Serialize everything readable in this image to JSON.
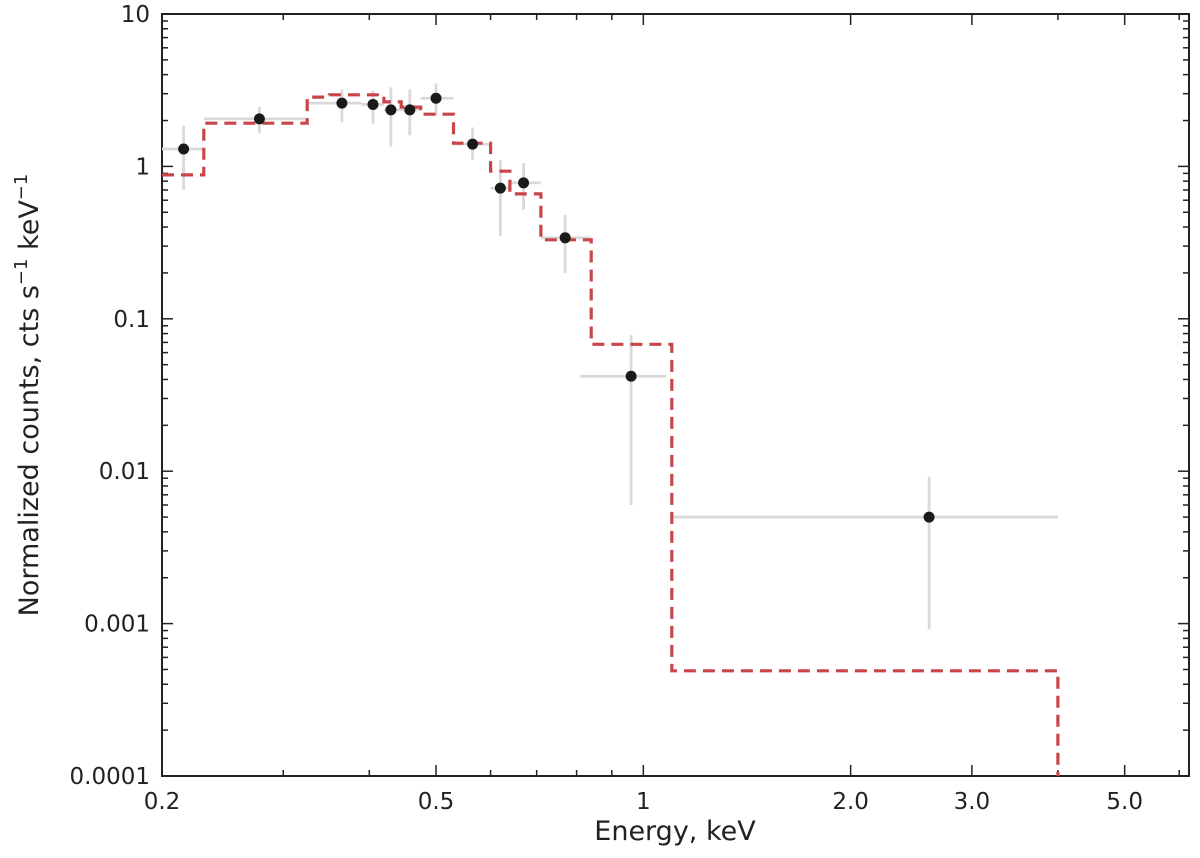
{
  "chart_data": {
    "type": "scatter",
    "title": "",
    "xlabel": "Energy, keV",
    "ylabel_parts": [
      "Normalized counts, cts s",
      "−1",
      " keV",
      "−1"
    ],
    "x_scale": "log",
    "y_scale": "log",
    "xlim": [
      0.2,
      6.2
    ],
    "ylim": [
      0.0001,
      10
    ],
    "x_ticks": [
      {
        "value": 0.2,
        "label": "0.2"
      },
      {
        "value": 0.5,
        "label": "0.5"
      },
      {
        "value": 1,
        "label": "1"
      },
      {
        "value": 2,
        "label": "2.0"
      },
      {
        "value": 3,
        "label": "3.0"
      },
      {
        "value": 5,
        "label": "5.0"
      }
    ],
    "y_ticks": [
      {
        "value": 10,
        "label": "10"
      },
      {
        "value": 1,
        "label": "1"
      },
      {
        "value": 0.1,
        "label": "0.1"
      },
      {
        "value": 0.01,
        "label": "0.01"
      },
      {
        "value": 0.001,
        "label": "0.001"
      },
      {
        "value": 0.0001,
        "label": "0.0001"
      }
    ],
    "grid": false,
    "data_points": [
      {
        "x": 0.215,
        "y": 1.3,
        "xerr": [
          0.2,
          0.23
        ],
        "yerr": [
          0.7,
          1.85
        ]
      },
      {
        "x": 0.277,
        "y": 2.05,
        "xerr": [
          0.23,
          0.325
        ],
        "yerr": [
          1.65,
          2.45
        ]
      },
      {
        "x": 0.365,
        "y": 2.6,
        "xerr": [
          0.325,
          0.39
        ],
        "yerr": [
          1.95,
          3.2
        ]
      },
      {
        "x": 0.405,
        "y": 2.55,
        "xerr": [
          0.39,
          0.42
        ],
        "yerr": [
          1.9,
          3.15
        ]
      },
      {
        "x": 0.43,
        "y": 2.35,
        "xerr": [
          0.42,
          0.445
        ],
        "yerr": [
          1.35,
          3.3
        ]
      },
      {
        "x": 0.458,
        "y": 2.35,
        "xerr": [
          0.445,
          0.475
        ],
        "yerr": [
          1.6,
          3.2
        ]
      },
      {
        "x": 0.5,
        "y": 2.8,
        "xerr": [
          0.475,
          0.53
        ],
        "yerr": [
          2.15,
          3.5
        ]
      },
      {
        "x": 0.565,
        "y": 1.4,
        "xerr": [
          0.53,
          0.6
        ],
        "yerr": [
          1.1,
          1.8
        ]
      },
      {
        "x": 0.62,
        "y": 0.72,
        "xerr": [
          0.6,
          0.64
        ],
        "yerr": [
          0.35,
          1.1
        ]
      },
      {
        "x": 0.67,
        "y": 0.78,
        "xerr": [
          0.64,
          0.71
        ],
        "yerr": [
          0.52,
          1.05
        ]
      },
      {
        "x": 0.77,
        "y": 0.34,
        "xerr": [
          0.71,
          0.84
        ],
        "yerr": [
          0.2,
          0.48
        ]
      },
      {
        "x": 0.96,
        "y": 0.042,
        "xerr": [
          0.81,
          1.08
        ],
        "yerr": [
          0.006,
          0.078
        ]
      },
      {
        "x": 2.6,
        "y": 0.005,
        "xerr": [
          1.1,
          4.0
        ],
        "yerr": [
          0.00092,
          0.0092
        ]
      }
    ],
    "model_steps": [
      {
        "x0": 0.2,
        "x1": 0.23,
        "y": 0.88
      },
      {
        "x0": 0.23,
        "x1": 0.325,
        "y": 1.92
      },
      {
        "x0": 0.325,
        "x1": 0.35,
        "y": 2.85
      },
      {
        "x0": 0.35,
        "x1": 0.42,
        "y": 2.95
      },
      {
        "x0": 0.42,
        "x1": 0.445,
        "y": 2.65
      },
      {
        "x0": 0.445,
        "x1": 0.475,
        "y": 2.45
      },
      {
        "x0": 0.475,
        "x1": 0.53,
        "y": 2.2
      },
      {
        "x0": 0.53,
        "x1": 0.6,
        "y": 1.42
      },
      {
        "x0": 0.6,
        "x1": 0.64,
        "y": 0.93
      },
      {
        "x0": 0.64,
        "x1": 0.71,
        "y": 0.66
      },
      {
        "x0": 0.71,
        "x1": 0.84,
        "y": 0.33
      },
      {
        "x0": 0.84,
        "x1": 1.1,
        "y": 0.068
      },
      {
        "x0": 1.1,
        "x1": 4.0,
        "y": 0.00049
      }
    ],
    "colors": {
      "points": "#1a1a1a",
      "errorbars": "#d9d9d9",
      "model": "#c8454a",
      "axes": "#222222"
    }
  }
}
